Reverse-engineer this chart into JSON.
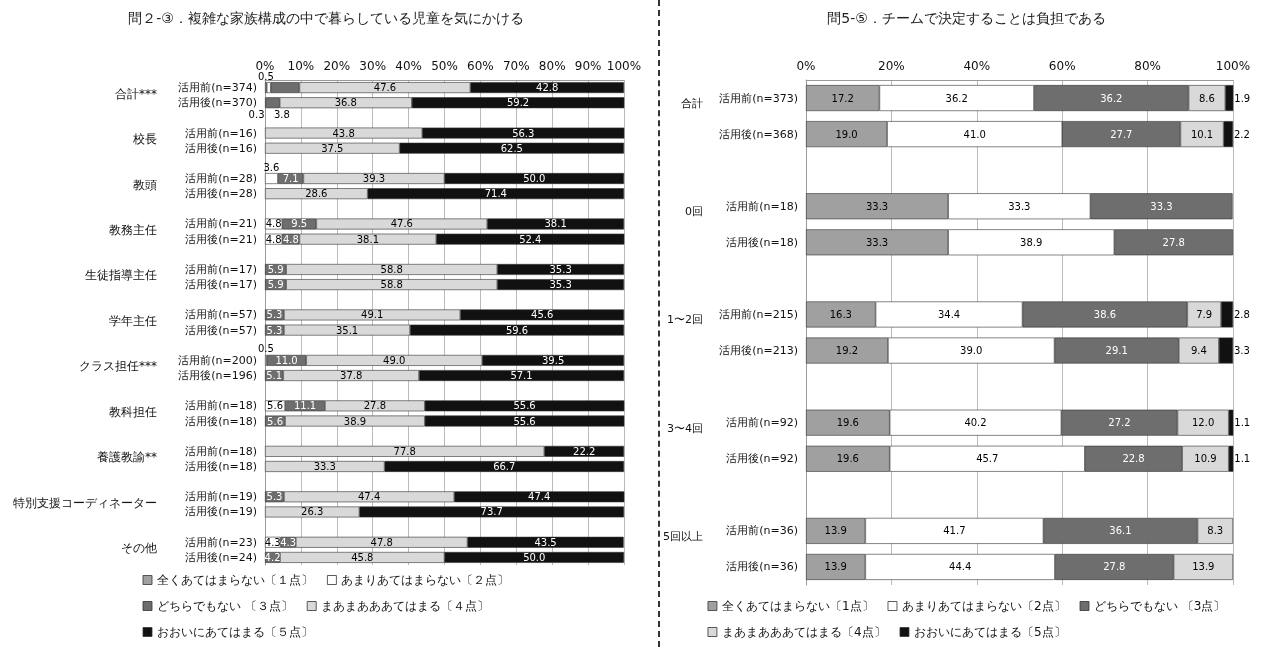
{
  "chart_data": [
    {
      "type": "bar",
      "orientation": "horizontal",
      "stacked": true,
      "title": "問２-③．複雑な家族構成の中で暮らしている児童を気にかける",
      "categories": [
        "活用前(n=374)",
        "活用後(n=370)",
        null,
        "活用前(n=16)",
        "活用後(n=16)",
        null,
        "活用前(n=28)",
        "活用後(n=28)",
        null,
        "活用前(n=21)",
        "活用後(n=21)",
        null,
        "活用前(n=17)",
        "活用後(n=17)",
        null,
        "活用前(n=57)",
        "活用後(n=57)",
        null,
        "活用前(n=200)",
        "活用後(n=196)",
        null,
        "活用前(n=18)",
        "活用後(n=18)",
        null,
        "活用前(n=18)",
        "活用後(n=18)",
        null,
        "活用前(n=19)",
        "活用後(n=19)",
        null,
        "活用前(n=23)",
        "活用後(n=24)"
      ],
      "y2_categories": [
        "合計***",
        null,
        null,
        "校長",
        null,
        null,
        "教頭",
        null,
        null,
        "教務主任",
        null,
        null,
        "生徒指導主任",
        null,
        null,
        "学年主任",
        null,
        null,
        "クラス担任***",
        null,
        null,
        "教科担任",
        null,
        null,
        "養護教諭**",
        null,
        null,
        "特別支援コーディネーター",
        null,
        null,
        "その他",
        null
      ],
      "series": [
        {
          "name": "全くあてはまらない〔１点〕",
          "color": "#a0a0a0",
          "values": [
            0.5,
            0,
            null,
            0,
            0,
            null,
            0,
            0,
            null,
            0,
            0,
            null,
            0,
            0,
            null,
            0,
            0,
            null,
            0,
            0,
            null,
            0,
            0,
            null,
            0,
            0,
            null,
            0,
            0,
            null,
            0,
            0
          ],
          "value_labels": [
            "0.5",
            null,
            null,
            null,
            null,
            null,
            null,
            null,
            null,
            null,
            null,
            null,
            null,
            null,
            null,
            null,
            null,
            null,
            null,
            null,
            null,
            null,
            null,
            null,
            null,
            null,
            null,
            null,
            null,
            null,
            null,
            null
          ]
        },
        {
          "name": "あまりあてはまらない〔２点〕",
          "color": "#ffffff",
          "values": [
            1.1,
            0.3,
            null,
            0,
            0,
            null,
            3.6,
            0,
            null,
            4.8,
            4.8,
            null,
            0,
            0,
            null,
            0,
            0,
            null,
            0.5,
            0,
            null,
            5.6,
            0,
            null,
            0,
            0,
            null,
            0,
            0,
            null,
            4.3,
            0
          ],
          "value_labels": [
            null,
            "0.3",
            null,
            null,
            null,
            null,
            "3.6",
            null,
            null,
            "4.8",
            "4.8",
            null,
            null,
            null,
            null,
            null,
            null,
            null,
            "0.5",
            null,
            null,
            "5.6",
            null,
            null,
            null,
            null,
            null,
            null,
            null,
            null,
            "4.3",
            null
          ]
        },
        {
          "name": "どちらでもない 〔３点〕",
          "color": "#6e6e6e",
          "values": [
            8.0,
            3.8,
            null,
            0,
            0,
            null,
            7.1,
            0,
            null,
            9.5,
            4.8,
            null,
            5.9,
            5.9,
            null,
            5.3,
            5.3,
            null,
            11.0,
            5.1,
            null,
            11.1,
            5.6,
            null,
            0,
            0,
            null,
            5.3,
            0,
            null,
            4.3,
            4.2
          ],
          "value_labels": [
            null,
            "3.8",
            null,
            null,
            null,
            null,
            "7.1",
            null,
            null,
            "9.5",
            "4.8",
            null,
            "5.9",
            "5.9",
            null,
            "5.3",
            "5.3",
            null,
            "11.0",
            "5.1",
            null,
            "11.1",
            "5.6",
            null,
            null,
            null,
            null,
            "5.3",
            null,
            null,
            "4.3",
            "4.2"
          ]
        },
        {
          "name": "まあまあああてはまる〔４点〕",
          "color": "#d9d9d9",
          "values": [
            47.6,
            36.8,
            null,
            43.8,
            37.5,
            null,
            39.3,
            28.6,
            null,
            47.6,
            38.1,
            null,
            58.8,
            58.8,
            null,
            49.1,
            35.1,
            null,
            49.0,
            37.8,
            null,
            27.8,
            38.9,
            null,
            77.8,
            33.3,
            null,
            47.4,
            26.3,
            null,
            47.8,
            45.8
          ],
          "value_labels": [
            "47.6",
            "36.8",
            null,
            "43.8",
            "37.5",
            null,
            "39.3",
            "28.6",
            null,
            "47.6",
            "38.1",
            null,
            "58.8",
            "58.8",
            null,
            "49.1",
            "35.1",
            null,
            "49.0",
            "37.8",
            null,
            "27.8",
            "38.9",
            null,
            "77.8",
            "33.3",
            null,
            "47.4",
            "26.3",
            null,
            "47.8",
            "45.8"
          ]
        },
        {
          "name": "おおいにあてはまる〔５点〕",
          "color": "#111111",
          "values": [
            42.8,
            59.2,
            null,
            56.3,
            62.5,
            null,
            50.0,
            71.4,
            null,
            38.1,
            52.4,
            null,
            35.3,
            35.3,
            null,
            45.6,
            59.6,
            null,
            39.5,
            57.1,
            null,
            55.6,
            55.6,
            null,
            22.2,
            66.7,
            null,
            47.4,
            73.7,
            null,
            43.5,
            50.0
          ],
          "value_labels": [
            "42.8",
            "59.2",
            null,
            "56.3",
            "62.5",
            null,
            "50.0",
            "71.4",
            null,
            "38.1",
            "52.4",
            null,
            "35.3",
            "35.3",
            null,
            "45.6",
            "59.6",
            null,
            "39.5",
            "57.1",
            null,
            "55.6",
            "55.6",
            null,
            "22.2",
            "66.7",
            null,
            "47.4",
            "73.7",
            null,
            "43.5",
            "50.0"
          ]
        }
      ],
      "xlim": [
        0,
        100
      ],
      "xticks": [
        {
          "value": 0,
          "label": "0%"
        },
        {
          "value": 10,
          "label": "10%"
        },
        {
          "value": 20,
          "label": "20%"
        },
        {
          "value": 30,
          "label": "30%"
        },
        {
          "value": 40,
          "label": "40%"
        },
        {
          "value": 50,
          "label": "50%"
        },
        {
          "value": 60,
          "label": "60%"
        },
        {
          "value": 70,
          "label": "70%"
        },
        {
          "value": 80,
          "label": "80%"
        },
        {
          "value": 90,
          "label": "90%"
        },
        {
          "value": 100,
          "label": "100%"
        }
      ],
      "grid": "x",
      "legend": "bottom"
    },
    {
      "type": "bar",
      "orientation": "horizontal",
      "stacked": true,
      "title": "問5-⑤．チームで決定することは負担である",
      "categories": [
        "活用前(n=373)",
        "活用後(n=368)",
        null,
        "活用前(n=18)",
        "活用後(n=18)",
        null,
        "活用前(n=215)",
        "活用後(n=213)",
        null,
        "活用前(n=92)",
        "活用後(n=92)",
        null,
        "活用前(n=36)",
        "活用後(n=36)"
      ],
      "y2_categories": [
        "合計",
        null,
        null,
        "0回",
        null,
        null,
        "1〜2回",
        null,
        null,
        "3〜4回",
        null,
        null,
        "5回以上",
        null
      ],
      "series": [
        {
          "name": "全くあてはまらない〔1点〕",
          "color": "#a0a0a0",
          "values": [
            17.2,
            19.0,
            null,
            33.3,
            33.3,
            null,
            16.3,
            19.2,
            null,
            19.6,
            19.6,
            null,
            13.9,
            13.9
          ],
          "value_labels": [
            "17.2",
            "19.0",
            null,
            "33.3",
            "33.3",
            null,
            "16.3",
            "19.2",
            null,
            "19.6",
            "19.6",
            null,
            "13.9",
            "13.9"
          ]
        },
        {
          "name": "あまりあてはまらない〔2点〕",
          "color": "#ffffff",
          "values": [
            36.2,
            41.0,
            null,
            33.3,
            38.9,
            null,
            34.4,
            39.0,
            null,
            40.2,
            45.7,
            null,
            41.7,
            44.4
          ],
          "value_labels": [
            "36.2",
            "41.0",
            null,
            "33.3",
            "38.9",
            null,
            "34.4",
            "39.0",
            null,
            "40.2",
            "45.7",
            null,
            "41.7",
            "44.4"
          ]
        },
        {
          "name": "どちらでもない 〔3点〕",
          "color": "#6e6e6e",
          "values": [
            36.2,
            27.7,
            null,
            33.3,
            27.8,
            null,
            38.6,
            29.1,
            null,
            27.2,
            22.8,
            null,
            36.1,
            27.8
          ],
          "value_labels": [
            "36.2",
            "27.7",
            null,
            "33.3",
            "27.8",
            null,
            "38.6",
            "29.1",
            null,
            "27.2",
            "22.8",
            null,
            "36.1",
            "27.8"
          ]
        },
        {
          "name": "まあまあああてはまる〔4点〕",
          "color": "#d9d9d9",
          "values": [
            8.6,
            10.1,
            null,
            0,
            0,
            null,
            7.9,
            9.4,
            null,
            12.0,
            10.9,
            null,
            8.3,
            13.9
          ],
          "value_labels": [
            "8.6",
            "10.1",
            null,
            null,
            null,
            null,
            "7.9",
            "9.4",
            null,
            "12.0",
            "10.9",
            null,
            "8.3",
            "13.9"
          ]
        },
        {
          "name": "おおいにあてはまる〔5点〕",
          "color": "#111111",
          "values": [
            1.9,
            2.2,
            null,
            0,
            0,
            null,
            2.8,
            3.3,
            null,
            1.1,
            1.1,
            null,
            0,
            0
          ],
          "value_labels": [
            "1.9",
            "2.2",
            null,
            null,
            null,
            null,
            "2.8",
            "3.3",
            null,
            "1.1",
            "1.1",
            null,
            null,
            null
          ]
        }
      ],
      "xlim": [
        0,
        100
      ],
      "xticks": [
        {
          "value": 0,
          "label": "0%"
        },
        {
          "value": 20,
          "label": "20%"
        },
        {
          "value": 40,
          "label": "40%"
        },
        {
          "value": 60,
          "label": "60%"
        },
        {
          "value": 80,
          "label": "80%"
        },
        {
          "value": 100,
          "label": "100%"
        }
      ],
      "grid": "x",
      "legend": "bottom"
    }
  ]
}
